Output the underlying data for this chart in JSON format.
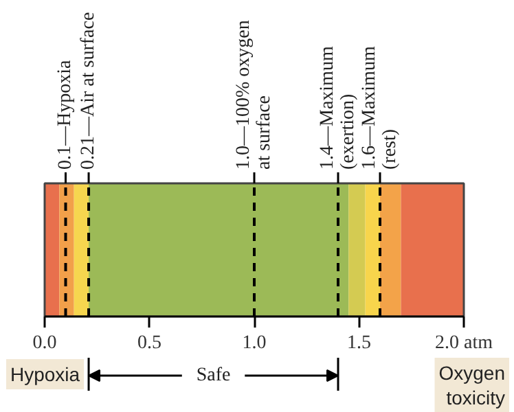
{
  "chart_data": {
    "type": "bar",
    "orientation": "horizontal",
    "stacked": true,
    "categories": [
      null
    ],
    "series": [
      {
        "color": "#e8704d",
        "values": [
          0.07
        ]
      },
      {
        "color": "#f2a04a",
        "values": [
          0.07
        ]
      },
      {
        "color": "#f6d64f",
        "values": [
          0.07
        ]
      },
      {
        "color": "#9cba57",
        "values": [
          1.24
        ]
      },
      {
        "color": "#d4cb52",
        "values": [
          0.08
        ]
      },
      {
        "color": "#f8d54c",
        "values": [
          0.07
        ]
      },
      {
        "color": "#f3a349",
        "values": [
          0.1
        ]
      },
      {
        "color": "#e8704d",
        "values": [
          0.3
        ]
      }
    ],
    "xlim": [
      0,
      2
    ],
    "xticks": [
      {
        "value": 0,
        "label": "0.0"
      },
      {
        "value": 0.5,
        "label": "0.5"
      },
      {
        "value": 1,
        "label": "1.0"
      },
      {
        "value": 1.5,
        "label": "1.5"
      },
      {
        "value": 2,
        "label": "2.0 atm"
      }
    ],
    "ref_lines": [
      {
        "axis": "x",
        "value": 0.1,
        "label": "0.1—Hypoxia",
        "line_style": "dashed"
      },
      {
        "axis": "x",
        "value": 0.21,
        "label": "0.21—Air at surface",
        "line_style": "dashed"
      },
      {
        "axis": "x",
        "value": 1.0,
        "label": "1.0—100% oxygen\n       at surface",
        "line_style": "dashed"
      },
      {
        "axis": "x",
        "value": 1.4,
        "label": "1.4—Maximum\n      (exertion)",
        "line_style": "dashed"
      },
      {
        "axis": "x",
        "value": 1.6,
        "label": "1.6—Maximum\n      (rest)",
        "line_style": "dashed"
      }
    ],
    "annotations": [
      "Hypoxia",
      "Safe",
      "Oxygen\ntoxicity"
    ]
  }
}
